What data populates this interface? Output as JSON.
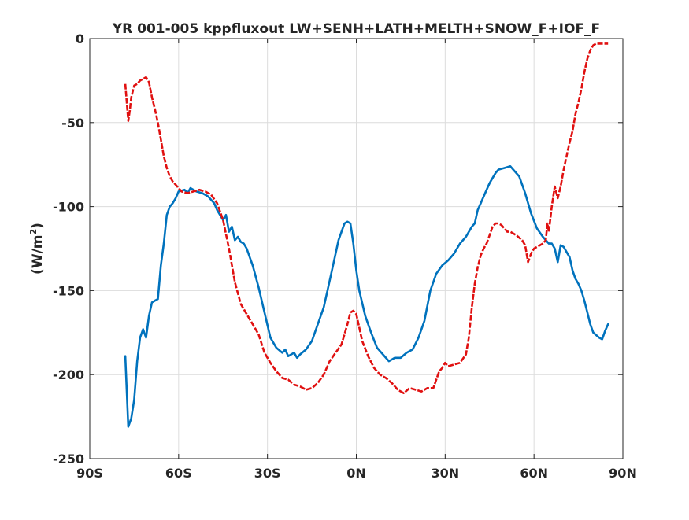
{
  "chart_data": {
    "type": "line",
    "title": "YR 001-005 kppfluxout LW+SENH+LATH+MELTH+SNOW_F+IOF_F",
    "xlabel": "",
    "ylabel_main": "(W/m",
    "ylabel_sup": "2",
    "ylabel_close": ")",
    "xlim": [
      -90,
      90
    ],
    "ylim": [
      -250,
      0
    ],
    "x_ticks": [
      -90,
      -60,
      -30,
      0,
      30,
      60,
      90
    ],
    "x_tick_labels": [
      "90S",
      "60S",
      "30S",
      "0N",
      "30N",
      "60N",
      "90N"
    ],
    "y_ticks": [
      0,
      -50,
      -100,
      -150,
      -200,
      -250
    ],
    "y_tick_labels": [
      "0",
      "-50",
      "-100",
      "-150",
      "-200",
      "-250"
    ],
    "grid": true,
    "legend": "none",
    "series": [
      {
        "color": "#0072BD",
        "style": "solid",
        "points": [
          [
            -78,
            -189
          ],
          [
            -77.5,
            -210
          ],
          [
            -77,
            -231
          ],
          [
            -76,
            -226
          ],
          [
            -75,
            -215
          ],
          [
            -74,
            -192
          ],
          [
            -73,
            -178
          ],
          [
            -72,
            -173
          ],
          [
            -71,
            -178
          ],
          [
            -70,
            -165
          ],
          [
            -69,
            -157
          ],
          [
            -68,
            -156
          ],
          [
            -67,
            -155
          ],
          [
            -66,
            -135
          ],
          [
            -65,
            -122
          ],
          [
            -64,
            -105
          ],
          [
            -63,
            -100
          ],
          [
            -62,
            -98
          ],
          [
            -61,
            -95
          ],
          [
            -60,
            -91
          ],
          [
            -58,
            -90
          ],
          [
            -57,
            -92
          ],
          [
            -56,
            -89
          ],
          [
            -54,
            -91
          ],
          [
            -52,
            -92
          ],
          [
            -50,
            -94
          ],
          [
            -48,
            -98
          ],
          [
            -47,
            -102
          ],
          [
            -46,
            -105
          ],
          [
            -45,
            -108
          ],
          [
            -44,
            -105
          ],
          [
            -43,
            -115
          ],
          [
            -42,
            -112
          ],
          [
            -41,
            -120
          ],
          [
            -40,
            -118
          ],
          [
            -39,
            -121
          ],
          [
            -38,
            -122
          ],
          [
            -37,
            -125
          ],
          [
            -35,
            -135
          ],
          [
            -33,
            -148
          ],
          [
            -31,
            -163
          ],
          [
            -29,
            -178
          ],
          [
            -27,
            -184
          ],
          [
            -25,
            -187
          ],
          [
            -24,
            -185
          ],
          [
            -23,
            -189
          ],
          [
            -21,
            -187
          ],
          [
            -20,
            -190
          ],
          [
            -19,
            -188
          ],
          [
            -17,
            -185
          ],
          [
            -15,
            -180
          ],
          [
            -13,
            -170
          ],
          [
            -11,
            -160
          ],
          [
            -9,
            -144
          ],
          [
            -7,
            -128
          ],
          [
            -6,
            -120
          ],
          [
            -5,
            -115
          ],
          [
            -4,
            -110
          ],
          [
            -3,
            -109
          ],
          [
            -2,
            -110
          ],
          [
            -1,
            -122
          ],
          [
            0,
            -138
          ],
          [
            1,
            -150
          ],
          [
            3,
            -165
          ],
          [
            5,
            -175
          ],
          [
            7,
            -184
          ],
          [
            9,
            -188
          ],
          [
            11,
            -192
          ],
          [
            13,
            -190
          ],
          [
            15,
            -190
          ],
          [
            17,
            -187
          ],
          [
            19,
            -185
          ],
          [
            21,
            -178
          ],
          [
            23,
            -168
          ],
          [
            25,
            -150
          ],
          [
            27,
            -140
          ],
          [
            29,
            -135
          ],
          [
            31,
            -132
          ],
          [
            33,
            -128
          ],
          [
            35,
            -122
          ],
          [
            37,
            -118
          ],
          [
            39,
            -112
          ],
          [
            40,
            -110
          ],
          [
            41,
            -102
          ],
          [
            42,
            -98
          ],
          [
            43,
            -94
          ],
          [
            44,
            -90
          ],
          [
            45,
            -86
          ],
          [
            46,
            -83
          ],
          [
            47,
            -80
          ],
          [
            48,
            -78
          ],
          [
            50,
            -77
          ],
          [
            52,
            -76
          ],
          [
            53,
            -78
          ],
          [
            55,
            -82
          ],
          [
            57,
            -92
          ],
          [
            59,
            -104
          ],
          [
            61,
            -113
          ],
          [
            63,
            -118
          ],
          [
            65,
            -122
          ],
          [
            66,
            -122
          ],
          [
            67,
            -125
          ],
          [
            68,
            -133
          ],
          [
            69,
            -123
          ],
          [
            70,
            -124
          ],
          [
            71,
            -127
          ],
          [
            72,
            -130
          ],
          [
            73,
            -138
          ],
          [
            74,
            -143
          ],
          [
            75,
            -146
          ],
          [
            76,
            -150
          ],
          [
            77,
            -156
          ],
          [
            78,
            -163
          ],
          [
            79,
            -170
          ],
          [
            80,
            -175
          ],
          [
            82,
            -178
          ],
          [
            83,
            -179
          ],
          [
            84,
            -174
          ],
          [
            85,
            -170
          ]
        ]
      },
      {
        "color": "#E01010",
        "style": "dashed",
        "points": [
          [
            -78,
            -27
          ],
          [
            -77.5,
            -38
          ],
          [
            -77,
            -49
          ],
          [
            -76.5,
            -43
          ],
          [
            -76,
            -35
          ],
          [
            -75,
            -28
          ],
          [
            -74,
            -27
          ],
          [
            -73,
            -25
          ],
          [
            -72,
            -24
          ],
          [
            -71,
            -23
          ],
          [
            -70,
            -26
          ],
          [
            -69,
            -35
          ],
          [
            -68,
            -42
          ],
          [
            -67,
            -50
          ],
          [
            -66,
            -60
          ],
          [
            -65,
            -70
          ],
          [
            -64,
            -77
          ],
          [
            -63,
            -82
          ],
          [
            -62,
            -85
          ],
          [
            -61,
            -87
          ],
          [
            -60,
            -89
          ],
          [
            -59,
            -91
          ],
          [
            -57,
            -92
          ],
          [
            -55,
            -91
          ],
          [
            -53,
            -90
          ],
          [
            -51,
            -91
          ],
          [
            -49,
            -93
          ],
          [
            -47,
            -98
          ],
          [
            -45,
            -108
          ],
          [
            -43,
            -125
          ],
          [
            -41,
            -145
          ],
          [
            -39,
            -158
          ],
          [
            -37,
            -164
          ],
          [
            -35,
            -170
          ],
          [
            -33,
            -176
          ],
          [
            -31,
            -187
          ],
          [
            -29,
            -193
          ],
          [
            -27,
            -198
          ],
          [
            -25,
            -202
          ],
          [
            -23,
            -203
          ],
          [
            -21,
            -206
          ],
          [
            -19,
            -207
          ],
          [
            -17,
            -209
          ],
          [
            -15,
            -208
          ],
          [
            -13,
            -205
          ],
          [
            -11,
            -200
          ],
          [
            -9,
            -192
          ],
          [
            -7,
            -187
          ],
          [
            -5,
            -182
          ],
          [
            -4,
            -176
          ],
          [
            -3,
            -170
          ],
          [
            -2,
            -163
          ],
          [
            -1,
            -162
          ],
          [
            0,
            -164
          ],
          [
            1,
            -172
          ],
          [
            2,
            -180
          ],
          [
            4,
            -189
          ],
          [
            6,
            -196
          ],
          [
            8,
            -200
          ],
          [
            10,
            -202
          ],
          [
            12,
            -205
          ],
          [
            14,
            -209
          ],
          [
            16,
            -211
          ],
          [
            18,
            -208
          ],
          [
            20,
            -209
          ],
          [
            22,
            -210
          ],
          [
            24,
            -208
          ],
          [
            26,
            -208
          ],
          [
            28,
            -198
          ],
          [
            29,
            -196
          ],
          [
            30,
            -193
          ],
          [
            31,
            -195
          ],
          [
            33,
            -194
          ],
          [
            35,
            -193
          ],
          [
            37,
            -188
          ],
          [
            38,
            -178
          ],
          [
            39,
            -160
          ],
          [
            40,
            -146
          ],
          [
            41,
            -136
          ],
          [
            42,
            -129
          ],
          [
            43,
            -125
          ],
          [
            44,
            -122
          ],
          [
            45,
            -117
          ],
          [
            46,
            -112
          ],
          [
            47,
            -110
          ],
          [
            48,
            -110
          ],
          [
            49,
            -111
          ],
          [
            50,
            -113
          ],
          [
            51,
            -115
          ],
          [
            52,
            -115
          ],
          [
            54,
            -117
          ],
          [
            56,
            -120
          ],
          [
            57,
            -123
          ],
          [
            58,
            -133
          ],
          [
            59,
            -128
          ],
          [
            60,
            -125
          ],
          [
            61,
            -124
          ],
          [
            62,
            -123
          ],
          [
            63,
            -122
          ],
          [
            64,
            -120
          ],
          [
            64.5,
            -110
          ],
          [
            65,
            -115
          ],
          [
            66,
            -100
          ],
          [
            67,
            -88
          ],
          [
            68,
            -95
          ],
          [
            69,
            -88
          ],
          [
            70,
            -78
          ],
          [
            71,
            -70
          ],
          [
            72,
            -62
          ],
          [
            73,
            -55
          ],
          [
            74,
            -45
          ],
          [
            75,
            -38
          ],
          [
            76,
            -30
          ],
          [
            77,
            -20
          ],
          [
            78,
            -12
          ],
          [
            79,
            -7
          ],
          [
            80,
            -4
          ],
          [
            81,
            -3
          ],
          [
            83,
            -3
          ],
          [
            85,
            -3
          ]
        ]
      }
    ]
  }
}
